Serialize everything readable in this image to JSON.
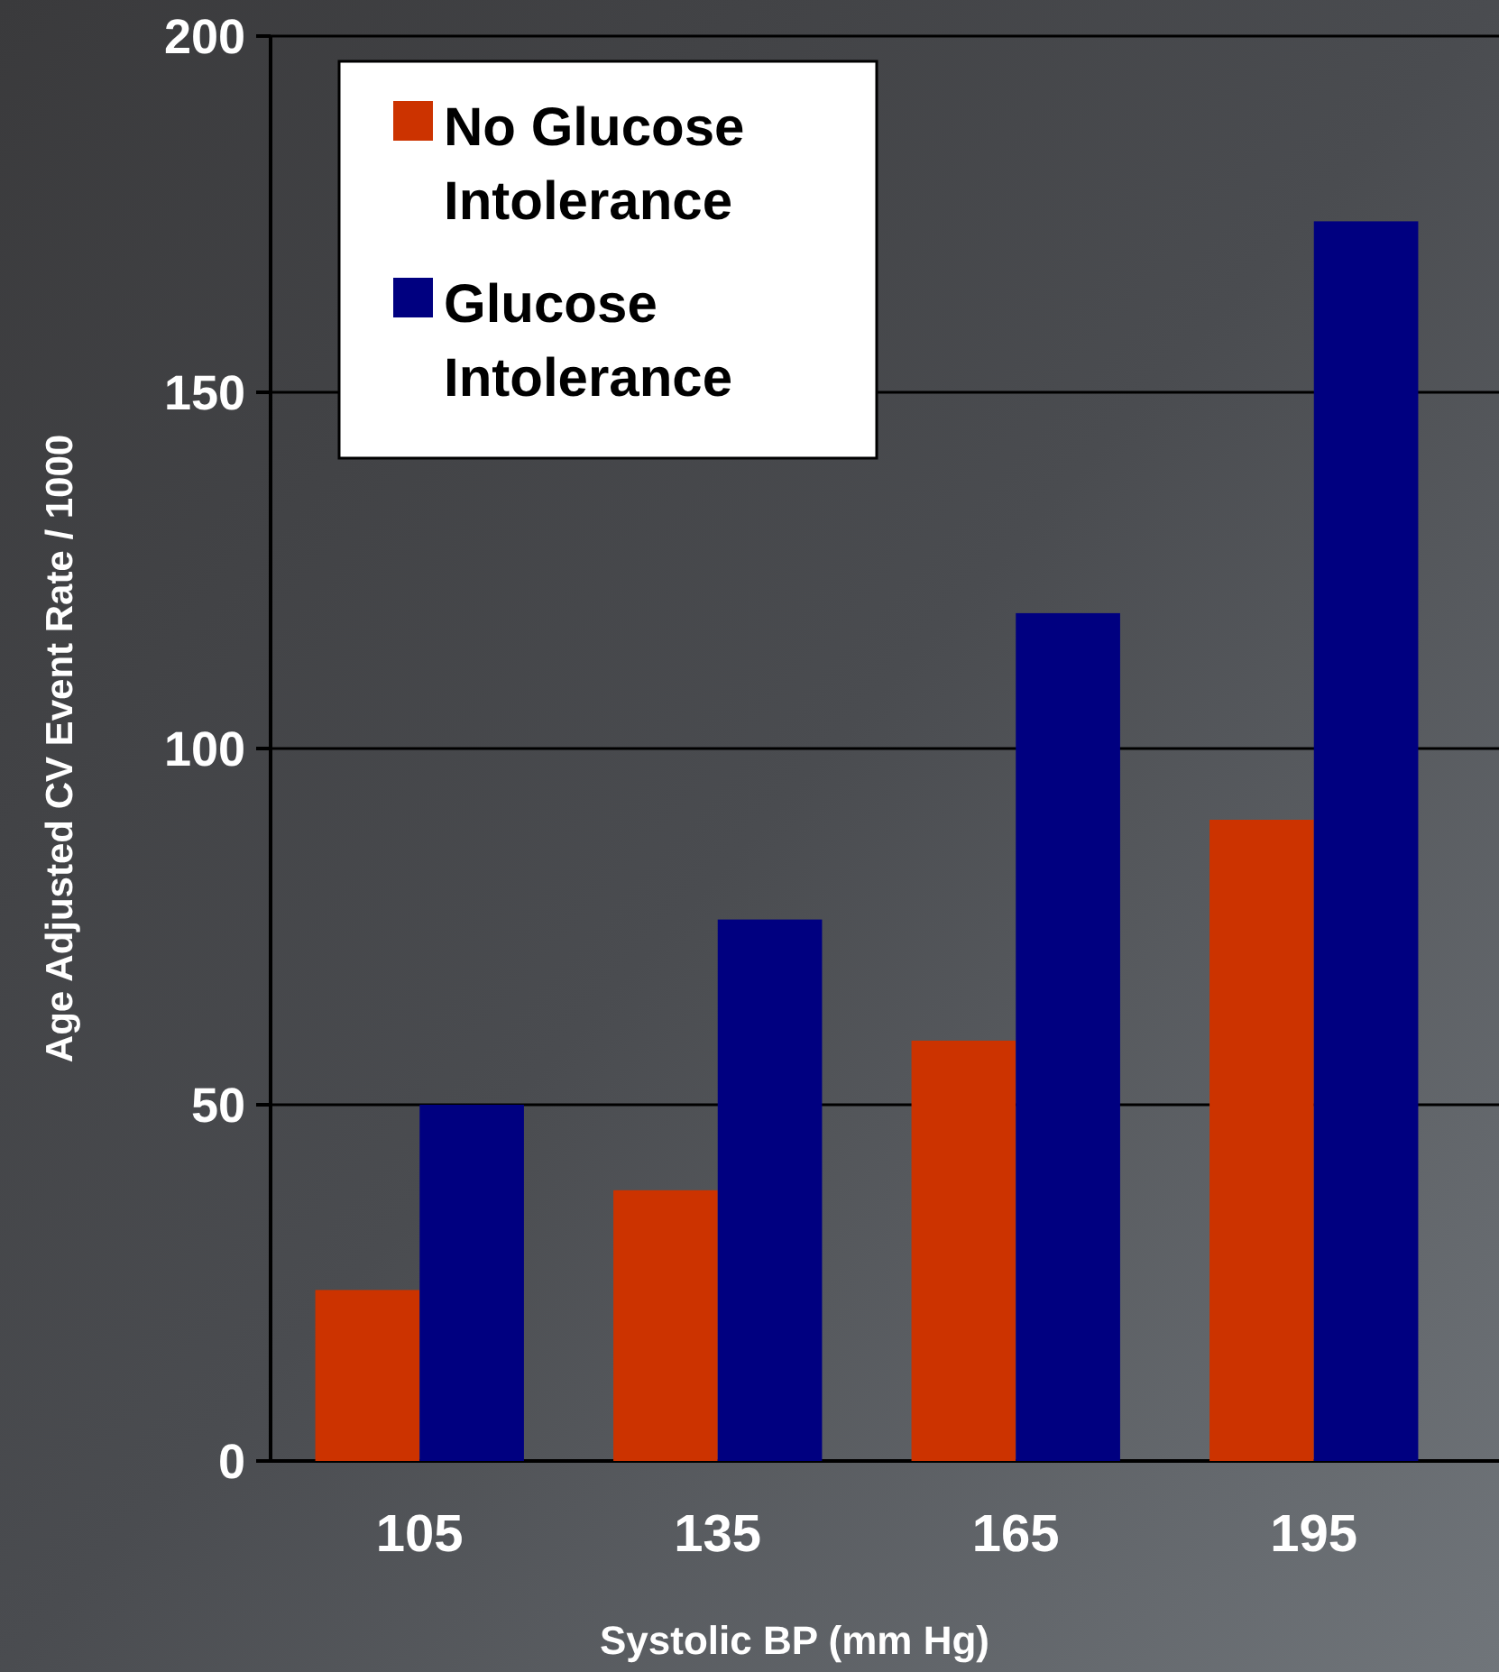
{
  "chart_data": {
    "type": "bar",
    "xlabel": "Systolic BP (mm Hg)",
    "ylabel": "Age Adjusted CV Event Rate / 1000",
    "categories": [
      "105",
      "135",
      "165",
      "195"
    ],
    "series": [
      {
        "name": "No Glucose Intolerance",
        "color": "#cc3300",
        "values": [
          24,
          38,
          59,
          90
        ]
      },
      {
        "name": "Glucose Intolerance",
        "color": "#000080",
        "values": [
          50,
          76,
          119,
          174
        ]
      }
    ],
    "ylim": [
      0,
      200
    ],
    "yticks": [
      0,
      50,
      100,
      150,
      200
    ],
    "grid": "y",
    "legend": "top left"
  }
}
